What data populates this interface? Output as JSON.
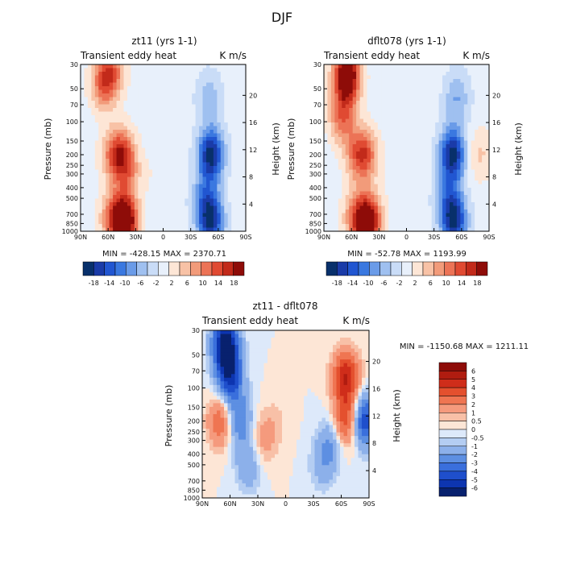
{
  "title": "DJF",
  "chart_data": [
    {
      "type": "heatmap",
      "title": "zt11 (yrs 1-1)",
      "left_label": "Transient eddy heat",
      "units": "K m/s",
      "ylabel": "Pressure (mb)",
      "ylabel_right": "Height (km)",
      "xticks": [
        "90N",
        "60N",
        "30N",
        "0",
        "30S",
        "60S",
        "90S"
      ],
      "yticks_pressure": [
        "30",
        "50",
        "70",
        "100",
        "150",
        "200",
        "250",
        "300",
        "400",
        "500",
        "700",
        "850",
        "1000"
      ],
      "yticks_height": [
        "20",
        "16",
        "12",
        "8",
        "4"
      ],
      "stats_label": "MIN = -428.15   MAX = 2370.71",
      "min": -428.15,
      "max": 2370.71,
      "colorbar_ticks": [
        "-18",
        "-14",
        "-10",
        "-6",
        "-2",
        "2",
        "6",
        "10",
        "14",
        "18"
      ],
      "features": [
        {
          "lat": 42,
          "p": 820,
          "v": 22
        },
        {
          "lat": 55,
          "p": 750,
          "v": 8
        },
        {
          "lat": 45,
          "p": 200,
          "v": 11
        },
        {
          "lat": 55,
          "p": 200,
          "v": 6
        },
        {
          "lat": 38,
          "p": 300,
          "v": 5
        },
        {
          "lat": 65,
          "p": 45,
          "v": 10
        },
        {
          "lat": 55,
          "p": 33,
          "v": 8
        },
        {
          "lat": -52,
          "p": 200,
          "v": -17
        },
        {
          "lat": -52,
          "p": 820,
          "v": -15
        },
        {
          "lat": -45,
          "p": 500,
          "v": -7
        },
        {
          "lat": -50,
          "p": 60,
          "v": -5
        },
        {
          "lat": 10,
          "p": 300,
          "v": 1
        }
      ]
    },
    {
      "type": "heatmap",
      "title": "dflt078 (yrs 1-1)",
      "left_label": "Transient eddy heat",
      "units": "K m/s",
      "ylabel": "Pressure (mb)",
      "ylabel_right": "Height (km)",
      "xticks": [
        "90N",
        "60N",
        "30N",
        "0",
        "30S",
        "60S",
        "90S"
      ],
      "yticks_pressure": [
        "30",
        "50",
        "70",
        "100",
        "150",
        "200",
        "250",
        "300",
        "400",
        "500",
        "700",
        "850",
        "1000"
      ],
      "yticks_height": [
        "20",
        "16",
        "12",
        "8",
        "4"
      ],
      "stats_label": "MIN = -52.78   MAX = 1193.99",
      "min": -52.78,
      "max": 1193.99,
      "colorbar_ticks": [
        "-18",
        "-14",
        "-10",
        "-6",
        "-2",
        "2",
        "6",
        "10",
        "14",
        "18"
      ],
      "features": [
        {
          "lat": 42,
          "p": 820,
          "v": 20
        },
        {
          "lat": 55,
          "p": 750,
          "v": 8
        },
        {
          "lat": 45,
          "p": 200,
          "v": 10
        },
        {
          "lat": 55,
          "p": 200,
          "v": 6
        },
        {
          "lat": 65,
          "p": 38,
          "v": 22
        },
        {
          "lat": 70,
          "p": 90,
          "v": 10
        },
        {
          "lat": -50,
          "p": 200,
          "v": -17
        },
        {
          "lat": -52,
          "p": 820,
          "v": -15
        },
        {
          "lat": -45,
          "p": 500,
          "v": -7
        },
        {
          "lat": -55,
          "p": 60,
          "v": -6
        },
        {
          "lat": -80,
          "p": 200,
          "v": 4
        },
        {
          "lat": 10,
          "p": 300,
          "v": 1
        }
      ]
    },
    {
      "type": "heatmap",
      "title": "zt11 - dflt078",
      "left_label": "Transient eddy heat",
      "units": "K m/s",
      "ylabel": "Pressure (mb)",
      "ylabel_right": "Height (km)",
      "xticks": [
        "90N",
        "60N",
        "30N",
        "0",
        "30S",
        "60S",
        "90S"
      ],
      "yticks_pressure": [
        "30",
        "50",
        "70",
        "100",
        "150",
        "200",
        "250",
        "300",
        "400",
        "500",
        "700",
        "850",
        "1000"
      ],
      "yticks_height": [
        "20",
        "16",
        "12",
        "8",
        "4"
      ],
      "stats_label": "MIN = -1150.68   MAX = 1211.11",
      "min": -1150.68,
      "max": 1211.11,
      "colorbar_ticks": [
        "6",
        "5",
        "4",
        "3",
        "2",
        "1",
        "0.5",
        "0",
        "-0.5",
        "-1",
        "-2",
        "-3",
        "-4",
        "-5",
        "-6"
      ],
      "features": [
        {
          "lat": 65,
          "p": 40,
          "v": -7
        },
        {
          "lat": 60,
          "p": 80,
          "v": -5
        },
        {
          "lat": 70,
          "p": 200,
          "v": 3
        },
        {
          "lat": 50,
          "p": 200,
          "v": -3
        },
        {
          "lat": 40,
          "p": 500,
          "v": -2
        },
        {
          "lat": 25,
          "p": 300,
          "v": 1.5
        },
        {
          "lat": -65,
          "p": 80,
          "v": 5
        },
        {
          "lat": -65,
          "p": 200,
          "v": 4
        },
        {
          "lat": -85,
          "p": 200,
          "v": -5
        },
        {
          "lat": -50,
          "p": 300,
          "v": -2
        },
        {
          "lat": -40,
          "p": 500,
          "v": -1.5
        },
        {
          "lat": 10,
          "p": 200,
          "v": 0.6
        }
      ]
    }
  ],
  "colors": {
    "diverging_18": [
      "#08306b",
      "#1a3ba8",
      "#2156d1",
      "#3a78e0",
      "#6a9be8",
      "#9fc0f0",
      "#c9dcf7",
      "#e8f0fb",
      "#fde6d6",
      "#f8c2a6",
      "#f29b7a",
      "#ec7356",
      "#e04a32",
      "#c22a1a",
      "#8e0c08"
    ],
    "diff_scale": [
      "#8e0c08",
      "#b01c10",
      "#cf2d1a",
      "#e4502e",
      "#ef7552",
      "#f59a7d",
      "#f8c0a7",
      "#fde6d6",
      "#dde9fa",
      "#b4cdf2",
      "#8cb0ea",
      "#5d8fe2",
      "#3a6fdc",
      "#1f4fcc",
      "#0d35b0",
      "#08216e"
    ]
  }
}
